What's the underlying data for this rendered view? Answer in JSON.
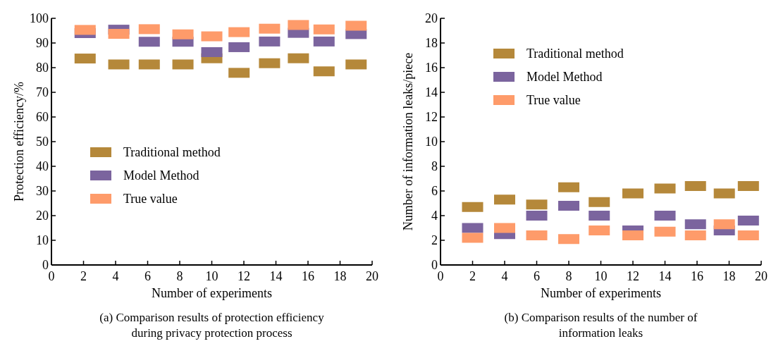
{
  "chart_data": [
    {
      "type": "scatter",
      "xlabel": "Number of experiments",
      "ylabel": "Protection efficiency/%",
      "annotations": [
        "(a) Comparison results of protection efficiency during privacy protection process"
      ],
      "xlim": [
        0,
        20
      ],
      "xticks": [
        0,
        2,
        4,
        6,
        8,
        10,
        12,
        14,
        16,
        18,
        20
      ],
      "ylim": [
        0,
        100
      ],
      "yticks": [
        0,
        10,
        20,
        30,
        40,
        50,
        60,
        70,
        80,
        90,
        100
      ],
      "marker": "square",
      "legend": "center",
      "x": [
        2.1,
        4.2,
        6.1,
        8.2,
        10,
        11.7,
        13.6,
        15.4,
        17,
        19
      ],
      "series": [
        {
          "name": "Traditional method",
          "color": "#b5883a",
          "values": [
            83.7,
            81.3,
            81.3,
            81.3,
            83.8,
            77.9,
            81.8,
            83.8,
            78.5,
            81.3
          ]
        },
        {
          "name": "Model Method",
          "color": "#7b649e",
          "values": [
            94,
            95.4,
            90.5,
            90.5,
            86.3,
            88.3,
            90.6,
            94.1,
            90.6,
            93.6
          ]
        },
        {
          "name": "True value",
          "color": "#fe9b6a",
          "values": [
            95.3,
            93.7,
            95.6,
            93.5,
            92.7,
            94.4,
            95.8,
            97.3,
            95.5,
            97
          ]
        }
      ]
    },
    {
      "type": "scatter",
      "xlabel": "Number of experiments",
      "ylabel": "Number of information leaks/piece",
      "annotations": [
        "(b) Comparison results of the number of information leaks"
      ],
      "xlim": [
        0,
        20
      ],
      "xticks": [
        0,
        2,
        4,
        6,
        8,
        10,
        12,
        14,
        16,
        18,
        20
      ],
      "ylim": [
        0,
        20
      ],
      "yticks": [
        0,
        2,
        4,
        6,
        8,
        10,
        12,
        14,
        16,
        18,
        20
      ],
      "marker": "square",
      "legend": "top",
      "x": [
        2,
        4,
        6,
        8,
        9.9,
        12,
        14,
        15.9,
        17.7,
        19.2
      ],
      "series": [
        {
          "name": "Traditional method",
          "color": "#b5883a",
          "values": [
            4.7,
            5.3,
            4.9,
            6.3,
            5.1,
            5.8,
            6.2,
            6.4,
            5.8,
            6.4
          ]
        },
        {
          "name": "Model Method",
          "color": "#7b649e",
          "values": [
            3,
            2.5,
            4,
            4.8,
            4,
            2.8,
            4,
            3.3,
            2.8,
            3.6
          ]
        },
        {
          "name": "True value",
          "color": "#fe9b6a",
          "values": [
            2.2,
            3,
            2.4,
            2.1,
            2.8,
            2.4,
            2.7,
            2.4,
            3.3,
            2.4
          ]
        }
      ]
    }
  ]
}
